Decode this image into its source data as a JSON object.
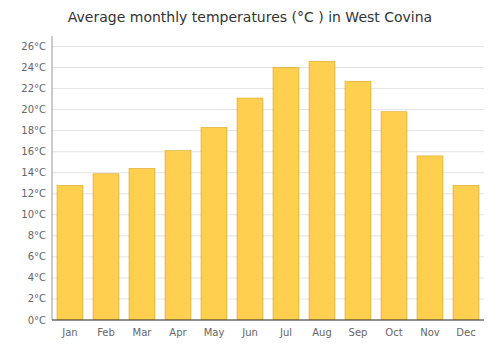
{
  "chart_data": {
    "type": "bar",
    "title": "Average monthly temperatures (°C ) in West Covina",
    "categories": [
      "Jan",
      "Feb",
      "Mar",
      "Apr",
      "May",
      "Jun",
      "Jul",
      "Aug",
      "Sep",
      "Oct",
      "Nov",
      "Dec"
    ],
    "values": [
      12.8,
      13.9,
      14.4,
      16.1,
      18.3,
      21.1,
      24.0,
      24.6,
      22.7,
      19.8,
      15.6,
      12.8
    ],
    "color": "#FFD050",
    "ylim": [
      0,
      27
    ],
    "yticks": [
      {
        "value": 0,
        "label": "0°C"
      },
      {
        "value": 2,
        "label": "2°C"
      },
      {
        "value": 4,
        "label": "4°C"
      },
      {
        "value": 6,
        "label": "6°C"
      },
      {
        "value": 8,
        "label": "8°C"
      },
      {
        "value": 10,
        "label": "10°C"
      },
      {
        "value": 12,
        "label": "12°C"
      },
      {
        "value": 14,
        "label": "14°C"
      },
      {
        "value": 16,
        "label": "16°C"
      },
      {
        "value": 18,
        "label": "18°C"
      },
      {
        "value": 20,
        "label": "20°C"
      },
      {
        "value": 22,
        "label": "22°C"
      },
      {
        "value": 24,
        "label": "24°C"
      },
      {
        "value": 26,
        "label": "26°C"
      }
    ],
    "grid": true
  }
}
